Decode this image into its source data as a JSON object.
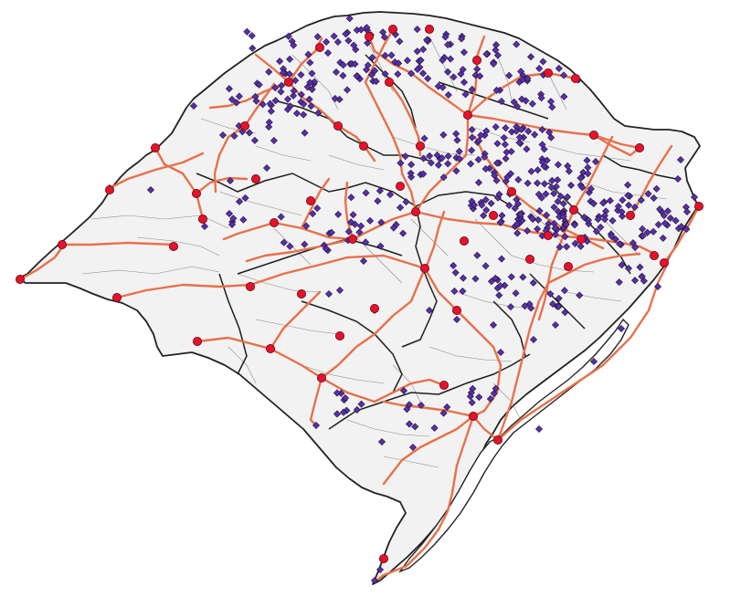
{
  "map": {
    "style": {
      "land_fill": "#f2f2f2",
      "outline": "#222222",
      "municipal_border": "#8a8a8a",
      "regional_border": "#1e1e1e",
      "route_color": "#e8704a",
      "city_marker_color": "#e8112d",
      "site_marker_color": "#5b2bb8",
      "background": "#ffffff"
    },
    "legend": null,
    "title": ""
  }
}
